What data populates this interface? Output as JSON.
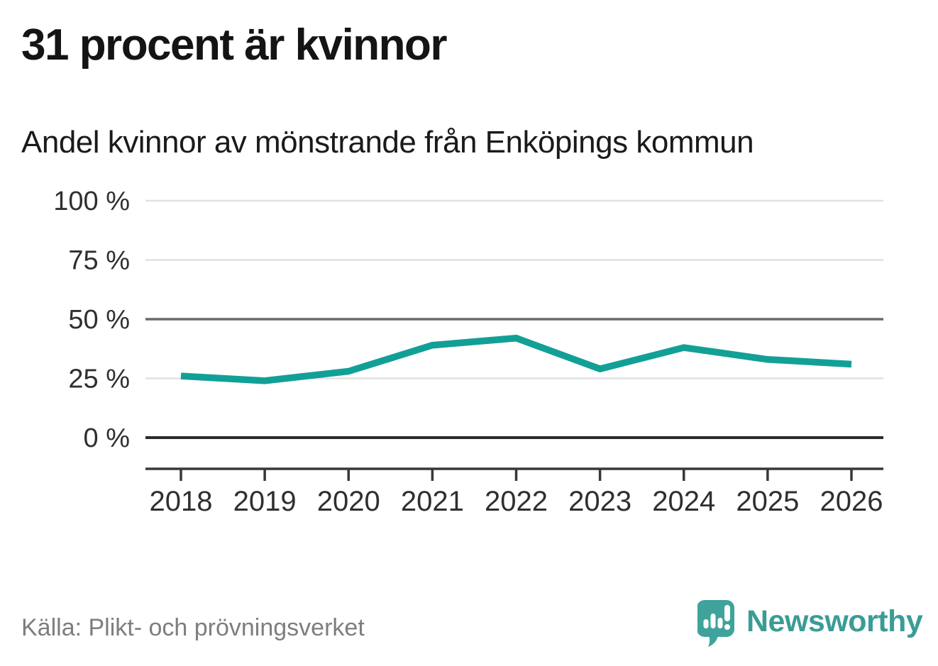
{
  "chart_data": {
    "type": "line",
    "title": "31 procent är kvinnor",
    "subtitle": "Andel kvinnor av mönstrande från Enköpings kommun",
    "x": [
      2018,
      2019,
      2020,
      2021,
      2022,
      2023,
      2024,
      2025,
      2026
    ],
    "values": [
      26,
      24,
      28,
      39,
      42,
      29,
      38,
      33,
      31
    ],
    "unit": "%",
    "ylim": [
      0,
      100
    ],
    "yticks": [
      0,
      25,
      50,
      75,
      100
    ],
    "ytick_labels": [
      "0 %",
      "25 %",
      "50 %",
      "75 %",
      "100 %"
    ],
    "reference_line": 50,
    "grid": true,
    "legend_position": "none",
    "line_color": "#12a096"
  },
  "footer": {
    "source": "Källa: Plikt- och prövningsverket",
    "brand": "Newsworthy",
    "brand_color": "#3b9c95"
  }
}
